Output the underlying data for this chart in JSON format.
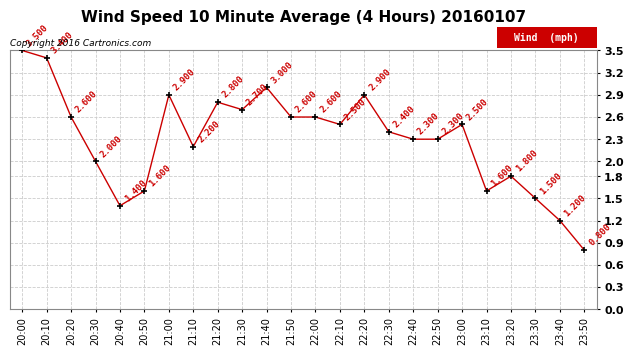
{
  "title": "Wind Speed 10 Minute Average (4 Hours) 20160107",
  "copyright": "Copyright 2016 Cartronics.com",
  "legend_label": "Wind  (mph)",
  "x_labels": [
    "20:00",
    "20:10",
    "20:20",
    "20:30",
    "20:40",
    "20:50",
    "21:00",
    "21:10",
    "21:20",
    "21:30",
    "21:40",
    "21:50",
    "22:00",
    "22:10",
    "22:20",
    "22:30",
    "22:40",
    "22:50",
    "23:00",
    "23:10",
    "23:20",
    "23:30",
    "23:40",
    "23:50"
  ],
  "y_values": [
    3.5,
    3.4,
    2.6,
    2.0,
    1.4,
    1.6,
    2.9,
    2.2,
    2.8,
    2.7,
    3.0,
    2.6,
    2.6,
    2.5,
    2.9,
    2.4,
    2.3,
    2.3,
    2.5,
    1.6,
    1.8,
    1.5,
    1.2,
    0.8
  ],
  "data_labels": [
    "3.500",
    "3.400",
    "2.600",
    "2.000",
    "1.400",
    "1.600",
    "2.900",
    "2.200",
    "2.800",
    "2.700",
    "3.000",
    "2.600",
    "2.600",
    "2.500",
    "2.900",
    "2.400",
    "2.300",
    "2.300",
    "2.500",
    "1.600",
    "1.800",
    "1.500",
    "1.200",
    "0.800"
  ],
  "line_color": "#cc0000",
  "marker_color": "#000000",
  "label_color": "#cc0000",
  "legend_bg": "#cc0000",
  "legend_text_color": "#ffffff",
  "ylim": [
    0.0,
    3.5
  ],
  "yticks": [
    0.0,
    0.3,
    0.6,
    0.9,
    1.2,
    1.5,
    1.8,
    2.0,
    2.3,
    2.6,
    2.9,
    3.2,
    3.5
  ],
  "background_color": "#ffffff",
  "grid_color": "#cccccc",
  "title_fontsize": 11,
  "label_fontsize": 6.5,
  "copyright_fontsize": 6.5,
  "tick_fontsize": 7,
  "ytick_fontsize": 8
}
